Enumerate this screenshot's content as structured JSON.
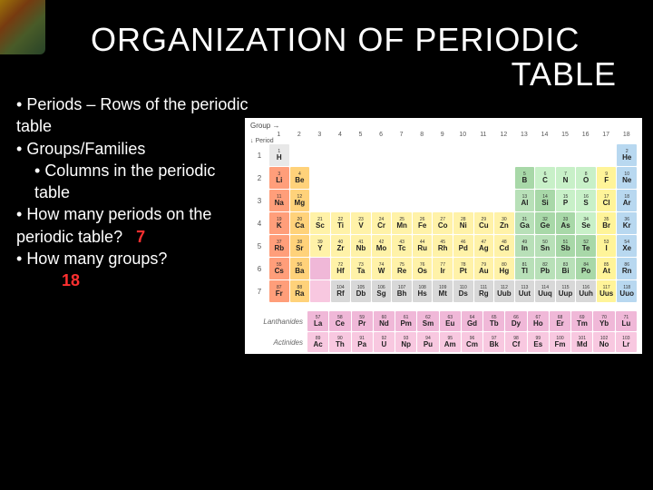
{
  "title_line1": "ORGANIZATION OF PERIODIC",
  "title_line2": "TABLE",
  "bullets": {
    "b1": "Periods – Rows of the periodic table",
    "b2": "Groups/Families",
    "b2a": "Columns in the periodic table",
    "b3a": "How many periods on the periodic table?",
    "b3ans": "7",
    "b4": "How many groups?",
    "b4ans": "18"
  },
  "pt": {
    "header_group": "Group →",
    "header_period": "↓ Period",
    "groups": [
      "1",
      "2",
      "3",
      "4",
      "5",
      "6",
      "7",
      "8",
      "9",
      "10",
      "11",
      "12",
      "13",
      "14",
      "15",
      "16",
      "17",
      "18"
    ],
    "periods": [
      "1",
      "2",
      "3",
      "4",
      "5",
      "6",
      "7"
    ],
    "lanth_label": "Lanthanides",
    "act_label": "Actinides",
    "colors": {
      "alkali": "#ff9e7a",
      "alkaline": "#ffd27a",
      "transition": "#fff2a8",
      "posttrans": "#b8e0b8",
      "metalloid": "#a8d8a8",
      "nonmetal": "#c8f0c8",
      "halogen": "#fff499",
      "noble": "#b8d8f0",
      "lanth": "#f0b8d8",
      "act": "#f8c8e0",
      "hydrogen": "#e8e8e8",
      "unknown": "#d8d8d8"
    },
    "elements": [
      {
        "p": 1,
        "g": 1,
        "n": "1",
        "s": "H",
        "c": "hydrogen"
      },
      {
        "p": 1,
        "g": 18,
        "n": "2",
        "s": "He",
        "c": "noble"
      },
      {
        "p": 2,
        "g": 1,
        "n": "3",
        "s": "Li",
        "c": "alkali"
      },
      {
        "p": 2,
        "g": 2,
        "n": "4",
        "s": "Be",
        "c": "alkaline"
      },
      {
        "p": 2,
        "g": 13,
        "n": "5",
        "s": "B",
        "c": "metalloid"
      },
      {
        "p": 2,
        "g": 14,
        "n": "6",
        "s": "C",
        "c": "nonmetal"
      },
      {
        "p": 2,
        "g": 15,
        "n": "7",
        "s": "N",
        "c": "nonmetal"
      },
      {
        "p": 2,
        "g": 16,
        "n": "8",
        "s": "O",
        "c": "nonmetal"
      },
      {
        "p": 2,
        "g": 17,
        "n": "9",
        "s": "F",
        "c": "halogen"
      },
      {
        "p": 2,
        "g": 18,
        "n": "10",
        "s": "Ne",
        "c": "noble"
      },
      {
        "p": 3,
        "g": 1,
        "n": "11",
        "s": "Na",
        "c": "alkali"
      },
      {
        "p": 3,
        "g": 2,
        "n": "12",
        "s": "Mg",
        "c": "alkaline"
      },
      {
        "p": 3,
        "g": 13,
        "n": "13",
        "s": "Al",
        "c": "posttrans"
      },
      {
        "p": 3,
        "g": 14,
        "n": "14",
        "s": "Si",
        "c": "metalloid"
      },
      {
        "p": 3,
        "g": 15,
        "n": "15",
        "s": "P",
        "c": "nonmetal"
      },
      {
        "p": 3,
        "g": 16,
        "n": "16",
        "s": "S",
        "c": "nonmetal"
      },
      {
        "p": 3,
        "g": 17,
        "n": "17",
        "s": "Cl",
        "c": "halogen"
      },
      {
        "p": 3,
        "g": 18,
        "n": "18",
        "s": "Ar",
        "c": "noble"
      },
      {
        "p": 4,
        "g": 1,
        "n": "19",
        "s": "K",
        "c": "alkali"
      },
      {
        "p": 4,
        "g": 2,
        "n": "20",
        "s": "Ca",
        "c": "alkaline"
      },
      {
        "p": 4,
        "g": 3,
        "n": "21",
        "s": "Sc",
        "c": "transition"
      },
      {
        "p": 4,
        "g": 4,
        "n": "22",
        "s": "Ti",
        "c": "transition"
      },
      {
        "p": 4,
        "g": 5,
        "n": "23",
        "s": "V",
        "c": "transition"
      },
      {
        "p": 4,
        "g": 6,
        "n": "24",
        "s": "Cr",
        "c": "transition"
      },
      {
        "p": 4,
        "g": 7,
        "n": "25",
        "s": "Mn",
        "c": "transition"
      },
      {
        "p": 4,
        "g": 8,
        "n": "26",
        "s": "Fe",
        "c": "transition"
      },
      {
        "p": 4,
        "g": 9,
        "n": "27",
        "s": "Co",
        "c": "transition"
      },
      {
        "p": 4,
        "g": 10,
        "n": "28",
        "s": "Ni",
        "c": "transition"
      },
      {
        "p": 4,
        "g": 11,
        "n": "29",
        "s": "Cu",
        "c": "transition"
      },
      {
        "p": 4,
        "g": 12,
        "n": "30",
        "s": "Zn",
        "c": "transition"
      },
      {
        "p": 4,
        "g": 13,
        "n": "31",
        "s": "Ga",
        "c": "posttrans"
      },
      {
        "p": 4,
        "g": 14,
        "n": "32",
        "s": "Ge",
        "c": "metalloid"
      },
      {
        "p": 4,
        "g": 15,
        "n": "33",
        "s": "As",
        "c": "metalloid"
      },
      {
        "p": 4,
        "g": 16,
        "n": "34",
        "s": "Se",
        "c": "nonmetal"
      },
      {
        "p": 4,
        "g": 17,
        "n": "35",
        "s": "Br",
        "c": "halogen"
      },
      {
        "p": 4,
        "g": 18,
        "n": "36",
        "s": "Kr",
        "c": "noble"
      },
      {
        "p": 5,
        "g": 1,
        "n": "37",
        "s": "Rb",
        "c": "alkali"
      },
      {
        "p": 5,
        "g": 2,
        "n": "38",
        "s": "Sr",
        "c": "alkaline"
      },
      {
        "p": 5,
        "g": 3,
        "n": "39",
        "s": "Y",
        "c": "transition"
      },
      {
        "p": 5,
        "g": 4,
        "n": "40",
        "s": "Zr",
        "c": "transition"
      },
      {
        "p": 5,
        "g": 5,
        "n": "41",
        "s": "Nb",
        "c": "transition"
      },
      {
        "p": 5,
        "g": 6,
        "n": "42",
        "s": "Mo",
        "c": "transition"
      },
      {
        "p": 5,
        "g": 7,
        "n": "43",
        "s": "Tc",
        "c": "transition"
      },
      {
        "p": 5,
        "g": 8,
        "n": "44",
        "s": "Ru",
        "c": "transition"
      },
      {
        "p": 5,
        "g": 9,
        "n": "45",
        "s": "Rh",
        "c": "transition"
      },
      {
        "p": 5,
        "g": 10,
        "n": "46",
        "s": "Pd",
        "c": "transition"
      },
      {
        "p": 5,
        "g": 11,
        "n": "47",
        "s": "Ag",
        "c": "transition"
      },
      {
        "p": 5,
        "g": 12,
        "n": "48",
        "s": "Cd",
        "c": "transition"
      },
      {
        "p": 5,
        "g": 13,
        "n": "49",
        "s": "In",
        "c": "posttrans"
      },
      {
        "p": 5,
        "g": 14,
        "n": "50",
        "s": "Sn",
        "c": "posttrans"
      },
      {
        "p": 5,
        "g": 15,
        "n": "51",
        "s": "Sb",
        "c": "metalloid"
      },
      {
        "p": 5,
        "g": 16,
        "n": "52",
        "s": "Te",
        "c": "metalloid"
      },
      {
        "p": 5,
        "g": 17,
        "n": "53",
        "s": "I",
        "c": "halogen"
      },
      {
        "p": 5,
        "g": 18,
        "n": "54",
        "s": "Xe",
        "c": "noble"
      },
      {
        "p": 6,
        "g": 1,
        "n": "55",
        "s": "Cs",
        "c": "alkali"
      },
      {
        "p": 6,
        "g": 2,
        "n": "56",
        "s": "Ba",
        "c": "alkaline"
      },
      {
        "p": 6,
        "g": 3,
        "n": "",
        "s": "",
        "c": "lanth"
      },
      {
        "p": 6,
        "g": 4,
        "n": "72",
        "s": "Hf",
        "c": "transition"
      },
      {
        "p": 6,
        "g": 5,
        "n": "73",
        "s": "Ta",
        "c": "transition"
      },
      {
        "p": 6,
        "g": 6,
        "n": "74",
        "s": "W",
        "c": "transition"
      },
      {
        "p": 6,
        "g": 7,
        "n": "75",
        "s": "Re",
        "c": "transition"
      },
      {
        "p": 6,
        "g": 8,
        "n": "76",
        "s": "Os",
        "c": "transition"
      },
      {
        "p": 6,
        "g": 9,
        "n": "77",
        "s": "Ir",
        "c": "transition"
      },
      {
        "p": 6,
        "g": 10,
        "n": "78",
        "s": "Pt",
        "c": "transition"
      },
      {
        "p": 6,
        "g": 11,
        "n": "79",
        "s": "Au",
        "c": "transition"
      },
      {
        "p": 6,
        "g": 12,
        "n": "80",
        "s": "Hg",
        "c": "transition"
      },
      {
        "p": 6,
        "g": 13,
        "n": "81",
        "s": "Tl",
        "c": "posttrans"
      },
      {
        "p": 6,
        "g": 14,
        "n": "82",
        "s": "Pb",
        "c": "posttrans"
      },
      {
        "p": 6,
        "g": 15,
        "n": "83",
        "s": "Bi",
        "c": "posttrans"
      },
      {
        "p": 6,
        "g": 16,
        "n": "84",
        "s": "Po",
        "c": "metalloid"
      },
      {
        "p": 6,
        "g": 17,
        "n": "85",
        "s": "At",
        "c": "halogen"
      },
      {
        "p": 6,
        "g": 18,
        "n": "86",
        "s": "Rn",
        "c": "noble"
      },
      {
        "p": 7,
        "g": 1,
        "n": "87",
        "s": "Fr",
        "c": "alkali"
      },
      {
        "p": 7,
        "g": 2,
        "n": "88",
        "s": "Ra",
        "c": "alkaline"
      },
      {
        "p": 7,
        "g": 3,
        "n": "",
        "s": "",
        "c": "act"
      },
      {
        "p": 7,
        "g": 4,
        "n": "104",
        "s": "Rf",
        "c": "unknown"
      },
      {
        "p": 7,
        "g": 5,
        "n": "105",
        "s": "Db",
        "c": "unknown"
      },
      {
        "p": 7,
        "g": 6,
        "n": "106",
        "s": "Sg",
        "c": "unknown"
      },
      {
        "p": 7,
        "g": 7,
        "n": "107",
        "s": "Bh",
        "c": "unknown"
      },
      {
        "p": 7,
        "g": 8,
        "n": "108",
        "s": "Hs",
        "c": "unknown"
      },
      {
        "p": 7,
        "g": 9,
        "n": "109",
        "s": "Mt",
        "c": "unknown"
      },
      {
        "p": 7,
        "g": 10,
        "n": "110",
        "s": "Ds",
        "c": "unknown"
      },
      {
        "p": 7,
        "g": 11,
        "n": "111",
        "s": "Rg",
        "c": "unknown"
      },
      {
        "p": 7,
        "g": 12,
        "n": "112",
        "s": "Uub",
        "c": "unknown"
      },
      {
        "p": 7,
        "g": 13,
        "n": "113",
        "s": "Uut",
        "c": "unknown"
      },
      {
        "p": 7,
        "g": 14,
        "n": "114",
        "s": "Uuq",
        "c": "unknown"
      },
      {
        "p": 7,
        "g": 15,
        "n": "115",
        "s": "Uup",
        "c": "unknown"
      },
      {
        "p": 7,
        "g": 16,
        "n": "116",
        "s": "Uuh",
        "c": "unknown"
      },
      {
        "p": 7,
        "g": 17,
        "n": "117",
        "s": "Uus",
        "c": "halogen"
      },
      {
        "p": 7,
        "g": 18,
        "n": "118",
        "s": "Uuo",
        "c": "noble"
      }
    ],
    "lanthanides": [
      {
        "n": "57",
        "s": "La"
      },
      {
        "n": "58",
        "s": "Ce"
      },
      {
        "n": "59",
        "s": "Pr"
      },
      {
        "n": "60",
        "s": "Nd"
      },
      {
        "n": "61",
        "s": "Pm"
      },
      {
        "n": "62",
        "s": "Sm"
      },
      {
        "n": "63",
        "s": "Eu"
      },
      {
        "n": "64",
        "s": "Gd"
      },
      {
        "n": "65",
        "s": "Tb"
      },
      {
        "n": "66",
        "s": "Dy"
      },
      {
        "n": "67",
        "s": "Ho"
      },
      {
        "n": "68",
        "s": "Er"
      },
      {
        "n": "69",
        "s": "Tm"
      },
      {
        "n": "70",
        "s": "Yb"
      },
      {
        "n": "71",
        "s": "Lu"
      }
    ],
    "actinides": [
      {
        "n": "89",
        "s": "Ac"
      },
      {
        "n": "90",
        "s": "Th"
      },
      {
        "n": "91",
        "s": "Pa"
      },
      {
        "n": "92",
        "s": "U"
      },
      {
        "n": "93",
        "s": "Np"
      },
      {
        "n": "94",
        "s": "Pu"
      },
      {
        "n": "95",
        "s": "Am"
      },
      {
        "n": "96",
        "s": "Cm"
      },
      {
        "n": "97",
        "s": "Bk"
      },
      {
        "n": "98",
        "s": "Cf"
      },
      {
        "n": "99",
        "s": "Es"
      },
      {
        "n": "100",
        "s": "Fm"
      },
      {
        "n": "101",
        "s": "Md"
      },
      {
        "n": "102",
        "s": "No"
      },
      {
        "n": "103",
        "s": "Lr"
      }
    ]
  }
}
